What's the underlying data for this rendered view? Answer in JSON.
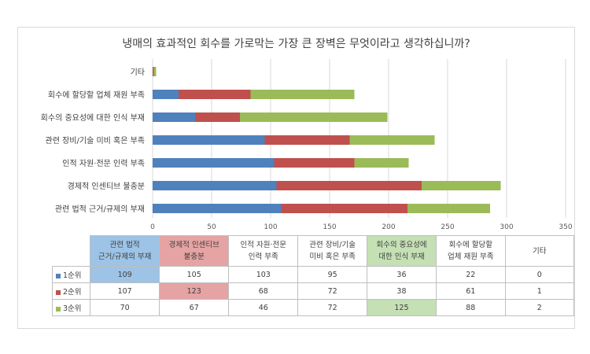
{
  "chart_data": {
    "type": "stacked-bar-horizontal",
    "title": "냉매의 효과적인 회수를 가로막는 가장 큰 장벽은 무엇이라고 생각하십니까?",
    "categories_top_to_bottom": [
      "기타",
      "회수에 할당할 업체 재원 부족",
      "회수의 중요성에 대한 인식 부재",
      "관련 장비/기술 미비 혹은 부족",
      "인적 자원·전문 인력 부족",
      "경제적 인센티브 불충분",
      "관련 법적 근거/규제의 부재"
    ],
    "series": [
      {
        "name": "1순위",
        "color": "#4f81bd",
        "values": [
          0,
          22,
          36,
          95,
          103,
          105,
          109
        ]
      },
      {
        "name": "2순위",
        "color": "#c0504d",
        "values": [
          1,
          61,
          38,
          72,
          68,
          123,
          107
        ]
      },
      {
        "name": "3순위",
        "color": "#9bbb59",
        "values": [
          2,
          88,
          125,
          72,
          46,
          67,
          70
        ]
      }
    ],
    "xlim": [
      0,
      350
    ],
    "xticks": [
      "0",
      "50",
      "100",
      "150",
      "200",
      "250",
      "300",
      "350"
    ],
    "grid": true
  },
  "table": {
    "headers": [
      {
        "text": "관련 법적\n근거/규제의 부재",
        "highlight": "blue"
      },
      {
        "text": "경제적 인센티브\n불충분",
        "highlight": "red"
      },
      {
        "text": "인적 자원·전문\n인력 부족",
        "highlight": ""
      },
      {
        "text": "관련 장비/기술\n미비 혹은 부족",
        "highlight": ""
      },
      {
        "text": "회수의 중요성에\n대한 인식 부재",
        "highlight": "green"
      },
      {
        "text": "회수에 할당할\n업체 재원 부족",
        "highlight": ""
      },
      {
        "text": "기타",
        "highlight": ""
      }
    ],
    "rows": [
      {
        "label": "1순위",
        "color": "#4f81bd",
        "values": [
          "109",
          "105",
          "103",
          "95",
          "36",
          "22",
          "0"
        ],
        "highlight_index": 0,
        "highlight": "blue"
      },
      {
        "label": "2순위",
        "color": "#c0504d",
        "values": [
          "107",
          "123",
          "68",
          "72",
          "38",
          "61",
          "1"
        ],
        "highlight_index": 1,
        "highlight": "red"
      },
      {
        "label": "3순위",
        "color": "#9bbb59",
        "values": [
          "70",
          "67",
          "46",
          "72",
          "125",
          "88",
          "2"
        ],
        "highlight_index": 4,
        "highlight": "green"
      }
    ]
  }
}
